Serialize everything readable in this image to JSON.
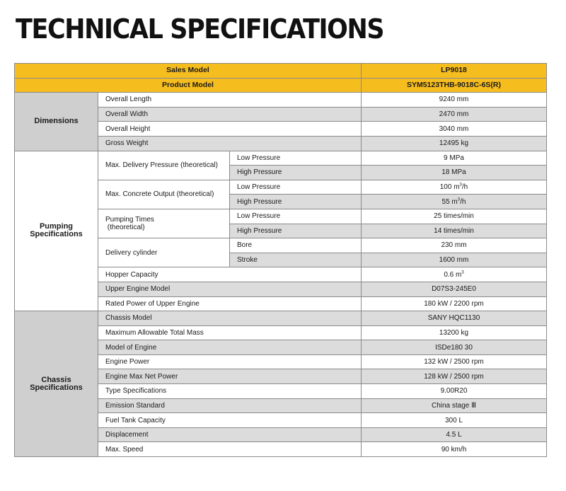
{
  "title": "TECHNICAL SPECIFICATIONS",
  "header": {
    "sales_model_label": "Sales Model",
    "sales_model_value": "LP9018",
    "product_model_label": "Product Model",
    "product_model_value": "SYM5123THB-9018C-6S(R)"
  },
  "dimensions": {
    "category": "Dimensions",
    "rows": [
      {
        "item": "Overall Length",
        "value": "9240 mm"
      },
      {
        "item": "Overall Width",
        "value": "2470 mm"
      },
      {
        "item": "Overall Height",
        "value": "3040 mm"
      },
      {
        "item": "Gross Weight",
        "value": "12495 kg"
      }
    ]
  },
  "pumping": {
    "category_line1": "Pumping",
    "category_line2": "Specifications",
    "delivery_pressure": {
      "item": "Max. Delivery Pressure (theoretical)",
      "low_label": "Low Pressure",
      "low_value": "9 MPa",
      "high_label": "High Pressure",
      "high_value": "18 MPa"
    },
    "concrete_output": {
      "item": "Max. Concrete Output (theoretical)",
      "low_label": "Low Pressure",
      "low_value": "100 m",
      "high_label": "High Pressure",
      "high_value": "55 m",
      "unit_sup": "3",
      "unit_suffix": "/h"
    },
    "pumping_times": {
      "item_line1": "Pumping Times",
      "item_line2": "(theoretical)",
      "low_label": "Low Pressure",
      "low_value": "25 times/min",
      "high_label": "High Pressure",
      "high_value": "14 times/min"
    },
    "delivery_cylinder": {
      "item": "Delivery cylinder",
      "bore_label": "Bore",
      "bore_value": "230 mm",
      "stroke_label": "Stroke",
      "stroke_value": "1600 mm"
    },
    "hopper": {
      "item": "Hopper Capacity",
      "value": "0.6 m",
      "sup": "3"
    },
    "upper_engine_model": {
      "item": "Upper Engine Model",
      "value": "D07S3-245E0"
    },
    "rated_power": {
      "item": "Rated Power of Upper Engine",
      "value": "180 kW / 2200 rpm"
    }
  },
  "chassis": {
    "category_line1": "Chassis",
    "category_line2": "Specifications",
    "rows": [
      {
        "item": "Chassis Model",
        "value": "SANY HQC1130"
      },
      {
        "item": "Maximum Allowable Total Mass",
        "value": "13200 kg"
      },
      {
        "item": "Model of Engine",
        "value": "ISDe180 30"
      },
      {
        "item": "Engine Power",
        "value": "132 kW / 2500 rpm"
      },
      {
        "item": "Engine Max Net Power",
        "value": "128 kW / 2500 rpm"
      },
      {
        "item": "Type Specifications",
        "value": "9.00R20"
      },
      {
        "item": "Emission Standard",
        "value": "China stage Ⅲ"
      },
      {
        "item": "Fuel Tank Capacity",
        "value": "300 L"
      },
      {
        "item": "Displacement",
        "value": "4.5 L"
      },
      {
        "item": "Max. Speed",
        "value": "90 km/h"
      }
    ]
  }
}
